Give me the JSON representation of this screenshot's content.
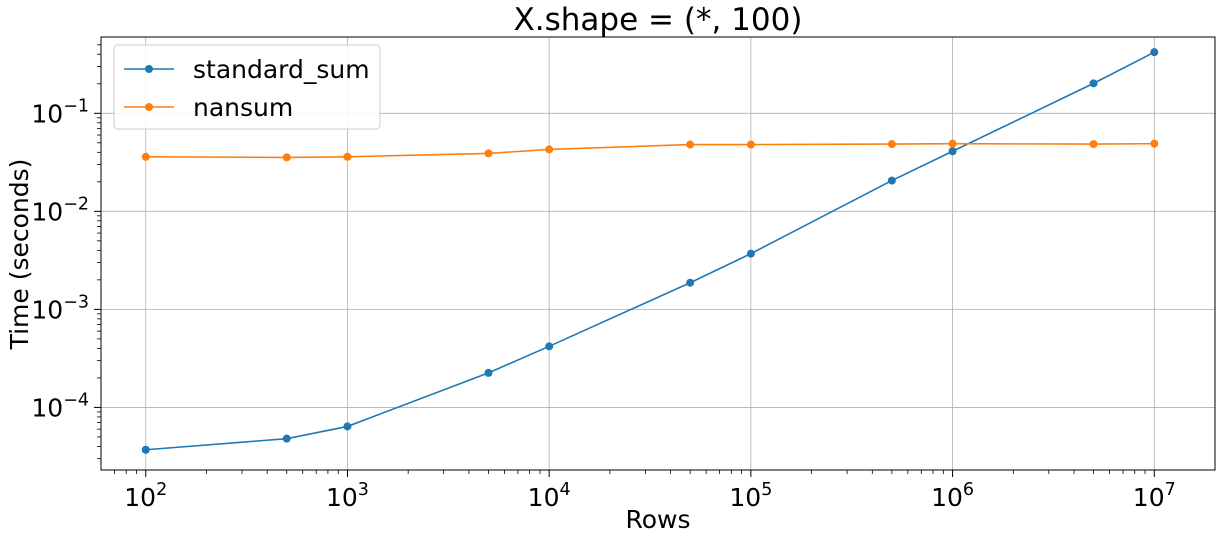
{
  "chart_data": {
    "type": "line",
    "title": "X.shape = (*, 100)",
    "xlabel": "Rows",
    "ylabel": "Time (seconds)",
    "xscale": "log",
    "yscale": "log",
    "xlim": [
      60,
      20000000
    ],
    "ylim": [
      2.3e-05,
      0.6
    ],
    "grid": true,
    "legend_position": "top-left",
    "x": [
      100,
      500,
      1000,
      5000,
      10000,
      50000,
      100000,
      500000,
      1000000,
      5000000,
      10000000
    ],
    "series": [
      {
        "name": "standard_sum",
        "color": "#1f77b4",
        "values": [
          3.7e-05,
          4.8e-05,
          6.4e-05,
          0.000225,
          0.00042,
          0.00187,
          0.0037,
          0.0206,
          0.041,
          0.202,
          0.42
        ]
      },
      {
        "name": "nansum",
        "color": "#ff7f0e",
        "values": [
          0.036,
          0.0355,
          0.036,
          0.039,
          0.0428,
          0.048,
          0.048,
          0.0485,
          0.049,
          0.0485,
          0.049
        ]
      }
    ],
    "x_ticks": [
      {
        "value": 100,
        "base": "10",
        "exp": "2"
      },
      {
        "value": 1000,
        "base": "10",
        "exp": "3"
      },
      {
        "value": 10000,
        "base": "10",
        "exp": "4"
      },
      {
        "value": 100000,
        "base": "10",
        "exp": "5"
      },
      {
        "value": 1000000,
        "base": "10",
        "exp": "6"
      },
      {
        "value": 10000000,
        "base": "10",
        "exp": "7"
      }
    ],
    "y_ticks": [
      {
        "value": 0.0001,
        "base": "10",
        "exp": "−4"
      },
      {
        "value": 0.001,
        "base": "10",
        "exp": "−3"
      },
      {
        "value": 0.01,
        "base": "10",
        "exp": "−2"
      },
      {
        "value": 0.1,
        "base": "10",
        "exp": "−1"
      }
    ]
  }
}
